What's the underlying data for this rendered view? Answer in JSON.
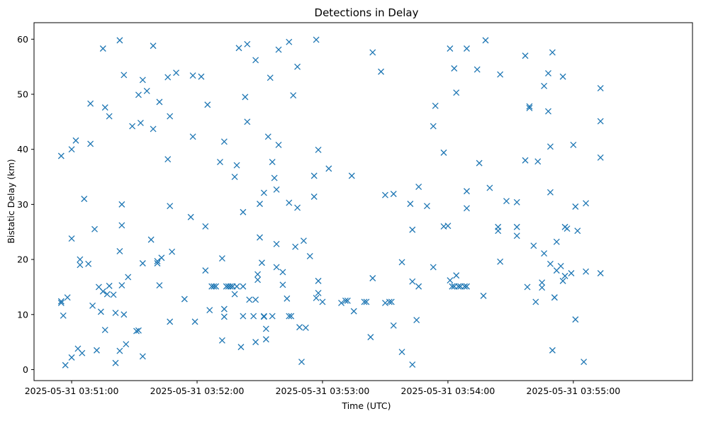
{
  "chart_data": {
    "type": "scatter",
    "title": "Detections in Delay",
    "xlabel": "Time (UTC)",
    "ylabel": "Bistatic Delay (km)",
    "marker": "x",
    "color": "#1f77b4",
    "grid": false,
    "legend": "none",
    "xlim": [
      "2025-05-31T03:50:42",
      "2025-05-31T03:55:57"
    ],
    "ylim": [
      -2,
      63
    ],
    "x_ticks": [
      {
        "value": "2025-05-31T03:51:00",
        "label": "2025-05-31 03:51:00"
      },
      {
        "value": "2025-05-31T03:52:00",
        "label": "2025-05-31 03:52:00"
      },
      {
        "value": "2025-05-31T03:53:00",
        "label": "2025-05-31 03:53:00"
      },
      {
        "value": "2025-05-31T03:54:00",
        "label": "2025-05-31 03:54:00"
      },
      {
        "value": "2025-05-31T03:55:00",
        "label": "2025-05-31 03:55:00"
      }
    ],
    "y_ticks": [
      0,
      10,
      20,
      30,
      40,
      50,
      60
    ],
    "points": [
      [
        "03:50:55",
        12.4
      ],
      [
        "03:50:55",
        12.1
      ],
      [
        "03:50:55",
        38.8
      ],
      [
        "03:50:56",
        9.8
      ],
      [
        "03:50:57",
        0.8
      ],
      [
        "03:50:58",
        13.1
      ],
      [
        "03:51:00",
        23.8
      ],
      [
        "03:51:00",
        2.2
      ],
      [
        "03:51:00",
        40.0
      ],
      [
        "03:51:02",
        41.6
      ],
      [
        "03:51:03",
        3.8
      ],
      [
        "03:51:04",
        20.0
      ],
      [
        "03:51:04",
        19.0
      ],
      [
        "03:51:05",
        3.0
      ],
      [
        "03:51:06",
        31.0
      ],
      [
        "03:51:08",
        19.2
      ],
      [
        "03:51:09",
        41.0
      ],
      [
        "03:51:09",
        48.3
      ],
      [
        "03:51:10",
        11.6
      ],
      [
        "03:51:11",
        25.5
      ],
      [
        "03:51:12",
        3.5
      ],
      [
        "03:51:13",
        15.0
      ],
      [
        "03:51:14",
        10.5
      ],
      [
        "03:51:15",
        58.3
      ],
      [
        "03:51:15",
        14.2
      ],
      [
        "03:51:16",
        47.6
      ],
      [
        "03:51:16",
        7.2
      ],
      [
        "03:51:17",
        13.7
      ],
      [
        "03:51:18",
        15.2
      ],
      [
        "03:51:18",
        46.0
      ],
      [
        "03:51:20",
        13.6
      ],
      [
        "03:51:21",
        1.2
      ],
      [
        "03:51:21",
        10.3
      ],
      [
        "03:51:23",
        59.8
      ],
      [
        "03:51:23",
        21.5
      ],
      [
        "03:51:23",
        3.4
      ],
      [
        "03:51:24",
        15.3
      ],
      [
        "03:51:24",
        30.0
      ],
      [
        "03:51:24",
        26.2
      ],
      [
        "03:51:25",
        53.5
      ],
      [
        "03:51:25",
        10.0
      ],
      [
        "03:51:26",
        4.6
      ],
      [
        "03:51:27",
        16.8
      ],
      [
        "03:51:29",
        44.2
      ],
      [
        "03:51:31",
        7.0
      ],
      [
        "03:51:32",
        7.1
      ],
      [
        "03:51:32",
        49.9
      ],
      [
        "03:51:33",
        44.8
      ],
      [
        "03:51:34",
        52.6
      ],
      [
        "03:51:34",
        19.3
      ],
      [
        "03:51:34",
        2.4
      ],
      [
        "03:51:36",
        50.6
      ],
      [
        "03:51:38",
        23.6
      ],
      [
        "03:51:39",
        58.8
      ],
      [
        "03:51:39",
        43.7
      ],
      [
        "03:51:41",
        19.3
      ],
      [
        "03:51:41",
        19.7
      ],
      [
        "03:51:42",
        48.6
      ],
      [
        "03:51:42",
        15.3
      ],
      [
        "03:51:43",
        20.3
      ],
      [
        "03:51:46",
        53.1
      ],
      [
        "03:51:46",
        38.2
      ],
      [
        "03:51:47",
        46.0
      ],
      [
        "03:51:47",
        29.7
      ],
      [
        "03:51:47",
        8.7
      ],
      [
        "03:51:48",
        21.4
      ],
      [
        "03:51:50",
        53.9
      ],
      [
        "03:51:54",
        12.8
      ],
      [
        "03:51:57",
        27.7
      ],
      [
        "03:51:58",
        42.3
      ],
      [
        "03:51:58",
        53.4
      ],
      [
        "03:51:59",
        8.7
      ],
      [
        "03:52:02",
        53.2
      ],
      [
        "03:52:04",
        26.0
      ],
      [
        "03:52:04",
        18.0
      ],
      [
        "03:52:05",
        48.1
      ],
      [
        "03:52:06",
        10.8
      ],
      [
        "03:52:07",
        15.1
      ],
      [
        "03:52:08",
        15.1
      ],
      [
        "03:52:09",
        15.1
      ],
      [
        "03:52:11",
        37.7
      ],
      [
        "03:52:12",
        20.2
      ],
      [
        "03:52:12",
        5.3
      ],
      [
        "03:52:13",
        41.4
      ],
      [
        "03:52:13",
        11.0
      ],
      [
        "03:52:13",
        9.6
      ],
      [
        "03:52:14",
        15.1
      ],
      [
        "03:52:15",
        15.1
      ],
      [
        "03:52:16",
        15.1
      ],
      [
        "03:52:17",
        15.1
      ],
      [
        "03:52:18",
        13.7
      ],
      [
        "03:52:18",
        35.0
      ],
      [
        "03:52:19",
        37.1
      ],
      [
        "03:52:19",
        15.1
      ],
      [
        "03:52:20",
        58.4
      ],
      [
        "03:52:21",
        4.1
      ],
      [
        "03:52:22",
        28.6
      ],
      [
        "03:52:22",
        15.1
      ],
      [
        "03:52:22",
        9.7
      ],
      [
        "03:52:23",
        49.5
      ],
      [
        "03:52:24",
        59.1
      ],
      [
        "03:52:24",
        45.0
      ],
      [
        "03:52:25",
        12.7
      ],
      [
        "03:52:27",
        9.7
      ],
      [
        "03:52:28",
        56.2
      ],
      [
        "03:52:28",
        12.7
      ],
      [
        "03:52:28",
        5.0
      ],
      [
        "03:52:29",
        17.3
      ],
      [
        "03:52:29",
        16.3
      ],
      [
        "03:52:30",
        24.0
      ],
      [
        "03:52:30",
        30.1
      ],
      [
        "03:52:31",
        19.4
      ],
      [
        "03:52:32",
        32.1
      ],
      [
        "03:52:32",
        9.7
      ],
      [
        "03:52:32",
        9.6
      ],
      [
        "03:52:33",
        7.4
      ],
      [
        "03:52:33",
        5.5
      ],
      [
        "03:52:34",
        42.3
      ],
      [
        "03:52:35",
        53.0
      ],
      [
        "03:52:36",
        37.7
      ],
      [
        "03:52:36",
        9.7
      ],
      [
        "03:52:37",
        34.8
      ],
      [
        "03:52:38",
        32.7
      ],
      [
        "03:52:38",
        22.8
      ],
      [
        "03:52:38",
        18.6
      ],
      [
        "03:52:39",
        40.8
      ],
      [
        "03:52:39",
        58.1
      ],
      [
        "03:52:41",
        17.7
      ],
      [
        "03:52:41",
        15.4
      ],
      [
        "03:52:43",
        12.9
      ],
      [
        "03:52:44",
        59.5
      ],
      [
        "03:52:44",
        30.3
      ],
      [
        "03:52:44",
        9.7
      ],
      [
        "03:52:45",
        9.7
      ],
      [
        "03:52:46",
        49.8
      ],
      [
        "03:52:47",
        22.3
      ],
      [
        "03:52:48",
        29.4
      ],
      [
        "03:52:48",
        55.0
      ],
      [
        "03:52:49",
        7.7
      ],
      [
        "03:52:50",
        1.4
      ],
      [
        "03:52:51",
        23.4
      ],
      [
        "03:52:52",
        7.6
      ],
      [
        "03:52:54",
        20.6
      ],
      [
        "03:52:56",
        35.2
      ],
      [
        "03:52:56",
        31.4
      ],
      [
        "03:52:57",
        59.9
      ],
      [
        "03:52:57",
        13.0
      ],
      [
        "03:52:58",
        13.9
      ],
      [
        "03:52:58",
        16.1
      ],
      [
        "03:52:58",
        39.9
      ],
      [
        "03:53:00",
        12.3
      ],
      [
        "03:53:03",
        36.5
      ],
      [
        "03:53:09",
        12.1
      ],
      [
        "03:53:11",
        12.5
      ],
      [
        "03:53:12",
        12.5
      ],
      [
        "03:53:14",
        35.2
      ],
      [
        "03:53:15",
        10.6
      ],
      [
        "03:53:20",
        12.3
      ],
      [
        "03:53:21",
        12.3
      ],
      [
        "03:53:23",
        5.9
      ],
      [
        "03:53:24",
        57.6
      ],
      [
        "03:53:24",
        16.6
      ],
      [
        "03:53:28",
        54.1
      ],
      [
        "03:53:30",
        31.7
      ],
      [
        "03:53:30",
        12.1
      ],
      [
        "03:53:32",
        12.3
      ],
      [
        "03:53:33",
        12.3
      ],
      [
        "03:53:34",
        31.9
      ],
      [
        "03:53:34",
        8.0
      ],
      [
        "03:53:38",
        19.5
      ],
      [
        "03:53:38",
        3.2
      ],
      [
        "03:53:42",
        30.1
      ],
      [
        "03:53:43",
        0.9
      ],
      [
        "03:53:43",
        25.4
      ],
      [
        "03:53:43",
        16.0
      ],
      [
        "03:53:45",
        9.0
      ],
      [
        "03:53:46",
        15.1
      ],
      [
        "03:53:46",
        33.2
      ],
      [
        "03:53:50",
        29.7
      ],
      [
        "03:53:53",
        44.2
      ],
      [
        "03:53:53",
        18.6
      ],
      [
        "03:53:54",
        47.9
      ],
      [
        "03:53:58",
        26.0
      ],
      [
        "03:53:58",
        39.4
      ],
      [
        "03:54:00",
        26.1
      ],
      [
        "03:54:01",
        58.3
      ],
      [
        "03:54:01",
        16.2
      ],
      [
        "03:54:02",
        15.1
      ],
      [
        "03:54:03",
        54.7
      ],
      [
        "03:54:03",
        15.1
      ],
      [
        "03:54:04",
        50.3
      ],
      [
        "03:54:04",
        17.1
      ],
      [
        "03:54:05",
        15.1
      ],
      [
        "03:54:06",
        15.1
      ],
      [
        "03:54:08",
        15.1
      ],
      [
        "03:54:09",
        15.1
      ],
      [
        "03:54:09",
        32.4
      ],
      [
        "03:54:09",
        29.3
      ],
      [
        "03:54:09",
        58.3
      ],
      [
        "03:54:14",
        54.5
      ],
      [
        "03:54:15",
        37.5
      ],
      [
        "03:54:17",
        13.4
      ],
      [
        "03:54:18",
        59.8
      ],
      [
        "03:54:20",
        33.0
      ],
      [
        "03:54:24",
        25.9
      ],
      [
        "03:54:24",
        25.2
      ],
      [
        "03:54:25",
        53.6
      ],
      [
        "03:54:25",
        19.6
      ],
      [
        "03:54:28",
        30.6
      ],
      [
        "03:54:33",
        30.4
      ],
      [
        "03:54:33",
        25.9
      ],
      [
        "03:54:33",
        24.3
      ],
      [
        "03:54:37",
        57.0
      ],
      [
        "03:54:37",
        38.0
      ],
      [
        "03:54:38",
        15.0
      ],
      [
        "03:54:39",
        47.8
      ],
      [
        "03:54:39",
        47.5
      ],
      [
        "03:54:41",
        22.5
      ],
      [
        "03:54:42",
        12.3
      ],
      [
        "03:54:43",
        37.8
      ],
      [
        "03:54:45",
        15.8
      ],
      [
        "03:54:45",
        14.9
      ],
      [
        "03:54:46",
        51.5
      ],
      [
        "03:54:46",
        21.1
      ],
      [
        "03:54:48",
        53.8
      ],
      [
        "03:54:48",
        46.9
      ],
      [
        "03:54:49",
        40.5
      ],
      [
        "03:54:49",
        32.2
      ],
      [
        "03:54:49",
        19.2
      ],
      [
        "03:54:50",
        57.6
      ],
      [
        "03:54:50",
        3.5
      ],
      [
        "03:54:51",
        13.1
      ],
      [
        "03:54:51",
        13.1
      ],
      [
        "03:54:52",
        23.2
      ],
      [
        "03:54:52",
        18.0
      ],
      [
        "03:54:54",
        18.8
      ],
      [
        "03:54:55",
        53.2
      ],
      [
        "03:54:55",
        16.1
      ],
      [
        "03:54:56",
        17.0
      ],
      [
        "03:54:56",
        25.9
      ],
      [
        "03:54:57",
        25.6
      ],
      [
        "03:54:59",
        17.5
      ],
      [
        "03:55:00",
        40.8
      ],
      [
        "03:55:01",
        29.6
      ],
      [
        "03:55:01",
        9.1
      ],
      [
        "03:55:02",
        25.2
      ],
      [
        "03:55:05",
        1.4
      ],
      [
        "03:55:06",
        30.2
      ],
      [
        "03:55:06",
        17.8
      ],
      [
        "03:55:13",
        51.1
      ],
      [
        "03:55:13",
        45.1
      ],
      [
        "03:55:13",
        38.5
      ],
      [
        "03:55:13",
        17.5
      ]
    ]
  }
}
